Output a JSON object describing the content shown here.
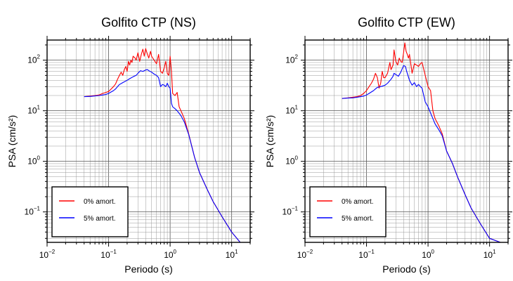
{
  "chart_data": [
    {
      "type": "line",
      "title": "Golfito CTP (NS)",
      "xlabel": "Periodo (s)",
      "ylabel": "PSA (cm/s²)",
      "xscale": "log",
      "yscale": "log",
      "xlim": [
        0.01,
        20
      ],
      "ylim": [
        0.025,
        250
      ],
      "grid": true,
      "legend_position": "bottom-left",
      "x_ticks": [
        {
          "base": "10",
          "exp": "−2"
        },
        {
          "base": "10",
          "exp": "−1"
        },
        {
          "base": "10",
          "exp": "0"
        },
        {
          "base": "10",
          "exp": "1"
        }
      ],
      "y_ticks": [
        {
          "base": "10",
          "exp": "−1"
        },
        {
          "base": "10",
          "exp": "0"
        },
        {
          "base": "10",
          "exp": "1"
        },
        {
          "base": "10",
          "exp": "2"
        }
      ],
      "series": [
        {
          "name": "0% amort.",
          "color": "#ff0000",
          "x": [
            0.04,
            0.05,
            0.06,
            0.07,
            0.08,
            0.09,
            0.1,
            0.11,
            0.12,
            0.13,
            0.14,
            0.15,
            0.16,
            0.17,
            0.18,
            0.19,
            0.2,
            0.21,
            0.22,
            0.23,
            0.24,
            0.25,
            0.27,
            0.28,
            0.3,
            0.32,
            0.34,
            0.36,
            0.38,
            0.4,
            0.42,
            0.45,
            0.48,
            0.5,
            0.55,
            0.6,
            0.65,
            0.7,
            0.75,
            0.8,
            0.85,
            0.9,
            0.95,
            1.0,
            1.05,
            1.1,
            1.2,
            1.3,
            1.4,
            1.5,
            1.7,
            2.0,
            2.5,
            3.0,
            4.0,
            5.0,
            7.0,
            10.0,
            15.0
          ],
          "y": [
            19,
            19.5,
            20,
            20.5,
            22,
            23,
            24,
            27,
            30,
            34,
            42,
            50,
            58,
            50,
            65,
            75,
            60,
            95,
            80,
            100,
            90,
            120,
            110,
            100,
            140,
            95,
            130,
            165,
            120,
            170,
            140,
            110,
            150,
            120,
            100,
            85,
            130,
            60,
            55,
            70,
            95,
            55,
            50,
            120,
            60,
            22,
            20,
            23,
            12,
            10,
            7,
            3.5,
            1.2,
            0.6,
            0.28,
            0.16,
            0.08,
            0.04,
            0.022
          ]
        },
        {
          "name": "5% amort.",
          "color": "#0000ff",
          "x": [
            0.04,
            0.05,
            0.06,
            0.07,
            0.08,
            0.09,
            0.1,
            0.11,
            0.12,
            0.13,
            0.14,
            0.15,
            0.17,
            0.2,
            0.22,
            0.25,
            0.28,
            0.3,
            0.33,
            0.36,
            0.4,
            0.43,
            0.45,
            0.5,
            0.55,
            0.6,
            0.65,
            0.7,
            0.75,
            0.8,
            0.85,
            0.9,
            0.95,
            1.0,
            1.05,
            1.1,
            1.2,
            1.3,
            1.5,
            1.7,
            2.0,
            2.5,
            3.0,
            4.0,
            5.0,
            7.0,
            10.0,
            15.0
          ],
          "y": [
            19,
            19.2,
            19.6,
            20,
            20.5,
            21,
            22,
            23.5,
            25,
            27,
            30,
            33,
            36,
            40,
            43,
            47,
            50,
            55,
            62,
            60,
            64,
            65,
            62,
            58,
            53,
            50,
            45,
            30,
            33,
            32,
            30,
            35,
            30,
            28,
            14,
            12,
            11,
            10,
            8,
            6,
            3.4,
            1.2,
            0.6,
            0.28,
            0.16,
            0.08,
            0.04,
            0.022
          ]
        }
      ]
    },
    {
      "type": "line",
      "title": "Golfito CTP (EW)",
      "xlabel": "Periodo (s)",
      "ylabel": "PSA (cm/s²)",
      "xscale": "log",
      "yscale": "log",
      "xlim": [
        0.01,
        20
      ],
      "ylim": [
        0.025,
        250
      ],
      "grid": true,
      "legend_position": "bottom-left",
      "x_ticks": [
        {
          "base": "10",
          "exp": "−2"
        },
        {
          "base": "10",
          "exp": "−1"
        },
        {
          "base": "10",
          "exp": "0"
        },
        {
          "base": "10",
          "exp": "1"
        }
      ],
      "y_ticks": [
        {
          "base": "10",
          "exp": "−1"
        },
        {
          "base": "10",
          "exp": "0"
        },
        {
          "base": "10",
          "exp": "1"
        },
        {
          "base": "10",
          "exp": "2"
        }
      ],
      "series": [
        {
          "name": "0% amort.",
          "color": "#ff0000",
          "x": [
            0.04,
            0.05,
            0.06,
            0.07,
            0.08,
            0.09,
            0.1,
            0.11,
            0.12,
            0.13,
            0.14,
            0.15,
            0.16,
            0.17,
            0.18,
            0.19,
            0.2,
            0.22,
            0.24,
            0.25,
            0.27,
            0.28,
            0.3,
            0.32,
            0.34,
            0.36,
            0.38,
            0.4,
            0.42,
            0.44,
            0.46,
            0.48,
            0.5,
            0.55,
            0.6,
            0.65,
            0.7,
            0.75,
            0.8,
            0.9,
            1.0,
            1.1,
            1.2,
            1.3,
            1.5,
            1.7,
            2.0,
            2.5,
            3.0,
            4.0,
            5.0,
            7.0,
            10.0,
            15.0
          ],
          "y": [
            17.5,
            18,
            18.5,
            19,
            20,
            22,
            25,
            30,
            35,
            42,
            55,
            45,
            28,
            35,
            60,
            45,
            45,
            55,
            90,
            65,
            80,
            160,
            95,
            80,
            110,
            95,
            90,
            140,
            220,
            150,
            130,
            110,
            130,
            55,
            85,
            80,
            75,
            85,
            90,
            50,
            30,
            25,
            10,
            7,
            5,
            3.5,
            1.6,
            0.9,
            0.5,
            0.22,
            0.12,
            0.06,
            0.03,
            0.025
          ]
        },
        {
          "name": "5% amort.",
          "color": "#0000ff",
          "x": [
            0.04,
            0.05,
            0.06,
            0.07,
            0.08,
            0.09,
            0.1,
            0.11,
            0.12,
            0.13,
            0.14,
            0.15,
            0.17,
            0.2,
            0.22,
            0.25,
            0.27,
            0.28,
            0.3,
            0.33,
            0.36,
            0.4,
            0.43,
            0.45,
            0.5,
            0.55,
            0.6,
            0.65,
            0.7,
            0.75,
            0.8,
            0.9,
            1.0,
            1.1,
            1.2,
            1.3,
            1.5,
            1.7,
            2.0,
            2.5,
            3.0,
            4.0,
            5.0,
            7.0,
            10.0,
            15.0
          ],
          "y": [
            17.5,
            17.8,
            18,
            18.5,
            19,
            19.5,
            20.5,
            22,
            23.5,
            25,
            27,
            29,
            30,
            32,
            35,
            42,
            48,
            55,
            52,
            48,
            58,
            78,
            75,
            60,
            40,
            32,
            36,
            30,
            33,
            30,
            28,
            15,
            12,
            9,
            7,
            5.5,
            4.2,
            3.2,
            1.6,
            0.9,
            0.5,
            0.22,
            0.12,
            0.06,
            0.03,
            0.025
          ]
        }
      ]
    }
  ]
}
